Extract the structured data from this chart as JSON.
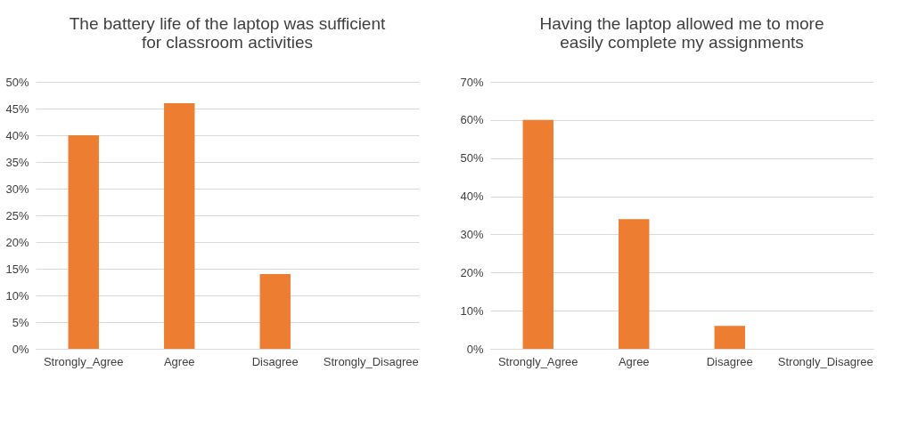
{
  "chart_data": [
    {
      "type": "bar",
      "title": "The battery life of the laptop was sufficient for classroom activities",
      "categories": [
        "Strongly_Agree",
        "Agree",
        "Disagree",
        "Strongly_Disagree"
      ],
      "values": [
        40,
        46,
        14,
        0
      ],
      "color": "#ed7d31",
      "ylim": [
        0,
        50
      ],
      "yticks": [
        {
          "value": 0,
          "label": "0%"
        },
        {
          "value": 5,
          "label": "5%"
        },
        {
          "value": 10,
          "label": "10%"
        },
        {
          "value": 15,
          "label": "15%"
        },
        {
          "value": 20,
          "label": "20%"
        },
        {
          "value": 25,
          "label": "25%"
        },
        {
          "value": 30,
          "label": "30%"
        },
        {
          "value": 35,
          "label": "35%"
        },
        {
          "value": 40,
          "label": "40%"
        },
        {
          "value": 45,
          "label": "45%"
        },
        {
          "value": 50,
          "label": "50%"
        }
      ],
      "grid": "y"
    },
    {
      "type": "bar",
      "title": "Having the laptop allowed me to more easily complete my assignments",
      "categories": [
        "Strongly_Agree",
        "Agree",
        "Disagree",
        "Strongly_Disagree"
      ],
      "values": [
        60,
        34,
        6,
        0
      ],
      "color": "#ed7d31",
      "ylim": [
        0,
        70
      ],
      "yticks": [
        {
          "value": 0,
          "label": "0%"
        },
        {
          "value": 10,
          "label": "10%"
        },
        {
          "value": 20,
          "label": "20%"
        },
        {
          "value": 30,
          "label": "30%"
        },
        {
          "value": 40,
          "label": "40%"
        },
        {
          "value": 50,
          "label": "50%"
        },
        {
          "value": 60,
          "label": "60%"
        },
        {
          "value": 70,
          "label": "70%"
        }
      ],
      "grid": "y"
    }
  ]
}
